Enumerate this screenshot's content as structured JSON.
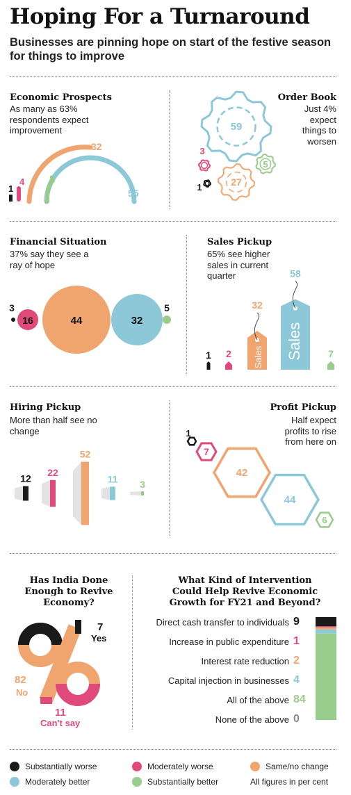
{
  "header": {
    "title": "Hoping For a Turnaround",
    "subtitle": "Businesses are pinning hope on start of the festive season for things to improve"
  },
  "colors": {
    "substantially_worse": "#1a1a1a",
    "moderately_worse": "#e04a7a",
    "same": "#f0a46e",
    "moderately_better": "#8dc8d8",
    "substantially_better": "#98cc8a"
  },
  "legend": {
    "items": [
      {
        "label": "Substantially worse",
        "color": "#1a1a1a"
      },
      {
        "label": "Moderately worse",
        "color": "#e04a7a"
      },
      {
        "label": "Same/no change",
        "color": "#f0a46e"
      },
      {
        "label": "Moderately better",
        "color": "#8dc8d8"
      },
      {
        "label": "Substantially better",
        "color": "#98cc8a"
      }
    ],
    "note": "All figures in per cent"
  },
  "panels": {
    "economic": {
      "title": "Economic Prospects",
      "subtitle": "As many as 63% respondents expect improvement"
    },
    "order": {
      "title": "Order Book",
      "subtitle": "Just 4% expect things to worsen"
    },
    "financial": {
      "title": "Financial Situation",
      "subtitle": "37% say they see a ray of hope"
    },
    "sales": {
      "title": "Sales Pickup",
      "subtitle": "65% see higher sales in current quarter",
      "tag_text": "Sales"
    },
    "hiring": {
      "title": "Hiring Pickup",
      "subtitle": "More than half see no change"
    },
    "profit": {
      "title": "Profit Pickup",
      "subtitle": "Half expect profits to rise from here on"
    },
    "india": {
      "title": "Has India Done Enough to Revive Economy?",
      "labels": {
        "yes": "Yes",
        "no": "No",
        "cant_say": "Can't say"
      }
    },
    "intervention": {
      "title": "What Kind of Intervention Could Help Revive Economic Growth for FY21 and Beyond?"
    }
  },
  "chart_data": [
    {
      "type": "pie",
      "name": "Economic Prospects",
      "categories": [
        "Substantially worse",
        "Moderately worse",
        "Same/no change",
        "Moderately better",
        "Substantially better"
      ],
      "values": [
        1,
        4,
        32,
        55,
        8
      ]
    },
    {
      "type": "pie",
      "name": "Order Book",
      "categories": [
        "Substantially worse",
        "Moderately worse",
        "Same/no change",
        "Moderately better",
        "Substantially better"
      ],
      "values": [
        1,
        3,
        27,
        59,
        5
      ]
    },
    {
      "type": "scatter",
      "name": "Financial Situation",
      "categories": [
        "Substantially worse",
        "Moderately worse",
        "Same/no change",
        "Moderately better",
        "Substantially better"
      ],
      "values": [
        3,
        16,
        44,
        32,
        5
      ]
    },
    {
      "type": "bar",
      "name": "Sales Pickup",
      "categories": [
        "Substantially worse",
        "Moderately worse",
        "Same/no change",
        "Moderately better",
        "Substantially better"
      ],
      "values": [
        1,
        2,
        32,
        58,
        7
      ]
    },
    {
      "type": "bar",
      "name": "Hiring Pickup",
      "categories": [
        "Substantially worse",
        "Moderately worse",
        "Same/no change",
        "Moderately better",
        "Substantially better"
      ],
      "values": [
        12,
        22,
        52,
        11,
        3
      ]
    },
    {
      "type": "scatter",
      "name": "Profit Pickup",
      "categories": [
        "Substantially worse",
        "Moderately worse",
        "Same/no change",
        "Moderately better",
        "Substantially better"
      ],
      "values": [
        1,
        7,
        42,
        44,
        6
      ]
    },
    {
      "type": "pie",
      "name": "Has India Done Enough to Revive Economy?",
      "categories": [
        "Yes",
        "No",
        "Can't say"
      ],
      "values": [
        7,
        82,
        11
      ],
      "colors": [
        "#1a1a1a",
        "#f0a46e",
        "#e04a7a"
      ]
    },
    {
      "type": "bar",
      "name": "What Kind of Intervention Could Help Revive Economic Growth for FY21 and Beyond?",
      "categories": [
        "Direct cash transfer to individuals",
        "Increase in public expenditure",
        "Interest rate reduction",
        "Capital injection in businesses",
        "All of the above",
        "None of the above"
      ],
      "values": [
        9,
        1,
        2,
        4,
        84,
        0
      ],
      "colors": [
        "#1a1a1a",
        "#e04a7a",
        "#f0a46e",
        "#8dc8d8",
        "#98cc8a",
        "#888888"
      ]
    }
  ]
}
